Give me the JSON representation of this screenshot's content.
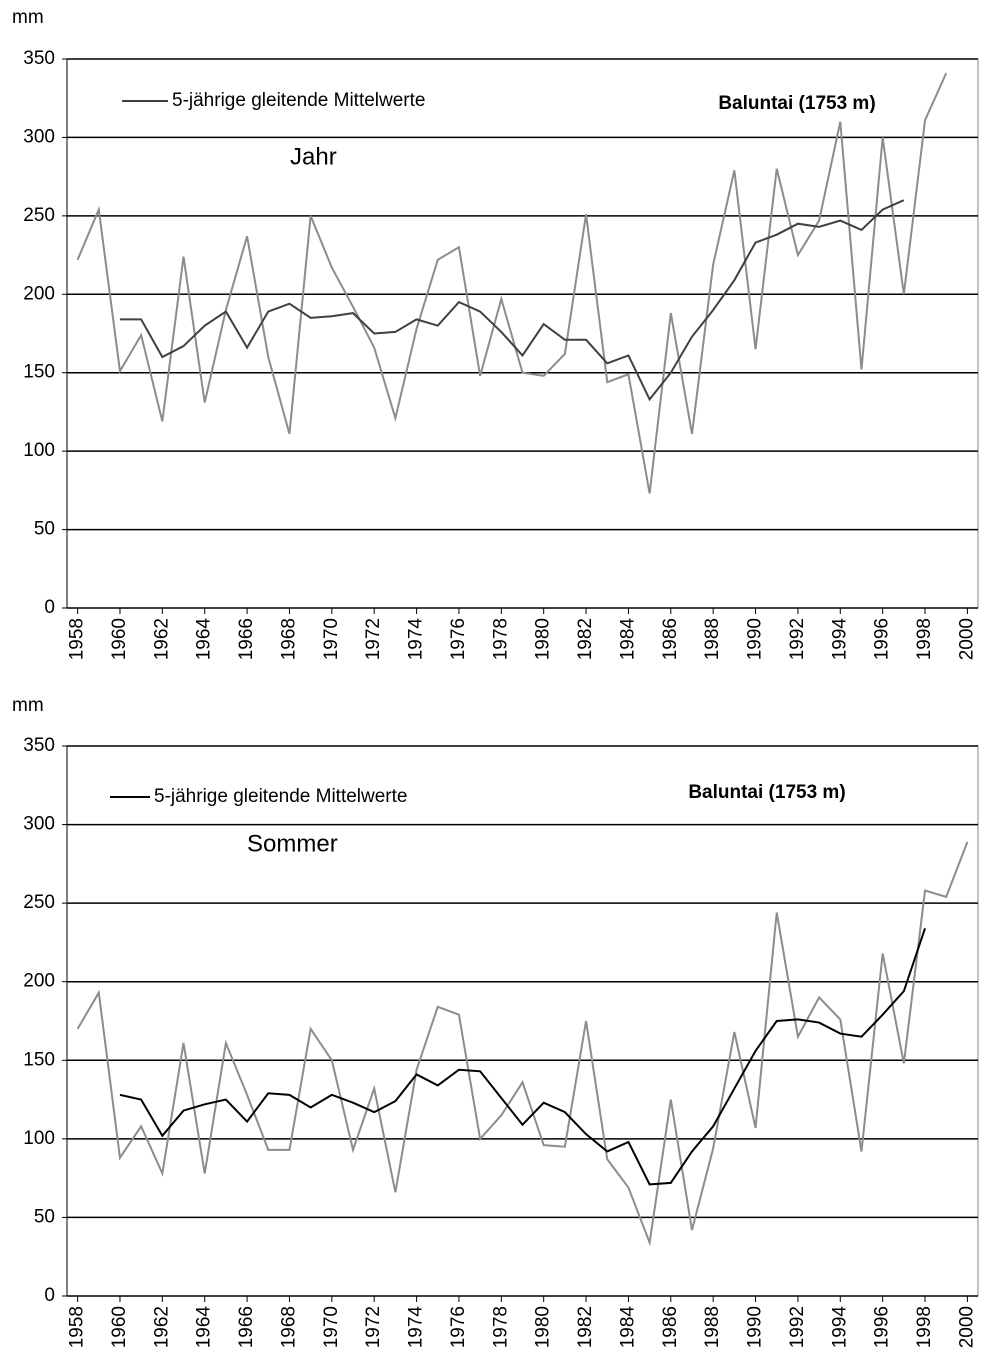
{
  "chart_data": [
    {
      "type": "line",
      "title": "Baluntai (1753 m)",
      "annotation": "Jahr",
      "ylabel": "mm",
      "x": [
        1958,
        1959,
        1960,
        1961,
        1962,
        1963,
        1964,
        1965,
        1966,
        1967,
        1968,
        1969,
        1970,
        1971,
        1972,
        1973,
        1974,
        1975,
        1976,
        1977,
        1978,
        1979,
        1980,
        1981,
        1982,
        1983,
        1984,
        1985,
        1986,
        1987,
        1988,
        1989,
        1990,
        1991,
        1992,
        1993,
        1994,
        1995,
        1996,
        1997,
        1998,
        1999
      ],
      "series": [
        {
          "color": "#8c8c8c",
          "values": [
            222,
            254,
            151,
            174,
            119,
            224,
            131,
            190,
            237,
            160,
            111,
            250,
            217,
            192,
            166,
            121,
            178,
            222,
            230,
            148,
            197,
            150,
            148,
            162,
            251,
            144,
            149,
            73,
            188,
            111,
            219,
            279,
            165,
            280,
            225,
            247,
            310,
            152,
            300,
            200,
            311,
            341
          ]
        },
        {
          "name": "5-jährige gleitende Mittelwerte",
          "color": "#404040",
          "values": [
            null,
            null,
            184,
            184,
            160,
            167,
            180,
            189,
            166,
            189,
            194,
            185,
            186,
            188,
            175,
            176,
            184,
            180,
            195,
            189,
            176,
            161,
            181,
            171,
            171,
            156,
            161,
            133,
            150,
            173,
            190,
            209,
            233,
            238,
            245,
            243,
            247,
            241,
            254,
            260,
            null,
            null
          ]
        }
      ],
      "xlim": [
        1957.5,
        2000.5
      ],
      "xticks": [
        1958,
        1960,
        1962,
        1964,
        1966,
        1968,
        1970,
        1972,
        1974,
        1976,
        1978,
        1980,
        1982,
        1984,
        1986,
        1988,
        1990,
        1992,
        1994,
        1996,
        1998,
        2000
      ],
      "ylim": [
        0,
        350
      ],
      "yticks": [
        0,
        50,
        100,
        150,
        200,
        250,
        300,
        350
      ],
      "grid": true
    },
    {
      "type": "line",
      "title": "Baluntai (1753 m)",
      "annotation": "Sommer",
      "ylabel": "mm",
      "x": [
        1958,
        1959,
        1960,
        1961,
        1962,
        1963,
        1964,
        1965,
        1966,
        1967,
        1968,
        1969,
        1970,
        1971,
        1972,
        1973,
        1974,
        1975,
        1976,
        1977,
        1978,
        1979,
        1980,
        1981,
        1982,
        1983,
        1984,
        1985,
        1986,
        1987,
        1988,
        1989,
        1990,
        1991,
        1992,
        1993,
        1994,
        1995,
        1996,
        1997,
        1998,
        1999,
        2000
      ],
      "series": [
        {
          "color": "#8c8c8c",
          "values": [
            170,
            193,
            88,
            108,
            78,
            161,
            78,
            161,
            128,
            93,
            93,
            170,
            150,
            93,
            132,
            66,
            144,
            184,
            179,
            100,
            115,
            136,
            96,
            95,
            175,
            87,
            69,
            34,
            125,
            42,
            94,
            168,
            107,
            244,
            165,
            190,
            176,
            92,
            218,
            148,
            258,
            254,
            289
          ]
        },
        {
          "name": "5-jährige gleitende Mittelwerte",
          "color": "#000000",
          "values": [
            null,
            null,
            128,
            125,
            102,
            118,
            122,
            125,
            111,
            129,
            128,
            120,
            128,
            123,
            117,
            124,
            141,
            134,
            144,
            143,
            126,
            109,
            123,
            117,
            103,
            92,
            98,
            71,
            72,
            92,
            108,
            132,
            156,
            175,
            176,
            174,
            167,
            165,
            179,
            194,
            234,
            null,
            null
          ]
        }
      ],
      "xlim": [
        1957.5,
        2000.5
      ],
      "xticks": [
        1958,
        1960,
        1962,
        1964,
        1966,
        1968,
        1970,
        1972,
        1974,
        1976,
        1978,
        1980,
        1982,
        1984,
        1986,
        1988,
        1990,
        1992,
        1994,
        1996,
        1998,
        2000
      ],
      "ylim": [
        0,
        350
      ],
      "yticks": [
        0,
        50,
        100,
        150,
        200,
        250,
        300,
        350
      ],
      "grid": true
    }
  ]
}
